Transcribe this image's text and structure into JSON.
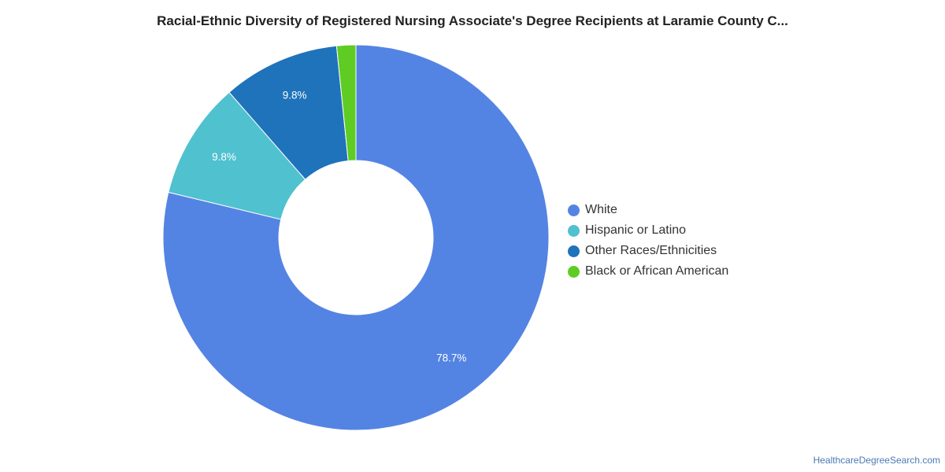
{
  "chart_data": {
    "type": "pie",
    "title": "Racial-Ethnic Diversity of Registered Nursing Associate's Degree Recipients at Laramie County C...",
    "categories": [
      "White",
      "Hispanic or Latino",
      "Other Races/Ethnicities",
      "Black or African American"
    ],
    "values": [
      78.7,
      9.8,
      9.8,
      1.6
    ],
    "data_labels": [
      "78.7%",
      "9.8%",
      "9.8%",
      ""
    ],
    "colors": [
      "#5484e3",
      "#50c1cf",
      "#1f73ba",
      "#5fcc24"
    ],
    "donut": true,
    "legend_position": "right"
  },
  "legend": {
    "items": [
      {
        "label": "White",
        "color": "#5484e3"
      },
      {
        "label": "Hispanic or Latino",
        "color": "#50c1cf"
      },
      {
        "label": "Other Races/Ethnicities",
        "color": "#1f73ba"
      },
      {
        "label": "Black or African American",
        "color": "#5fcc24"
      }
    ]
  },
  "footer": {
    "source": "HealthcareDegreeSearch.com"
  }
}
